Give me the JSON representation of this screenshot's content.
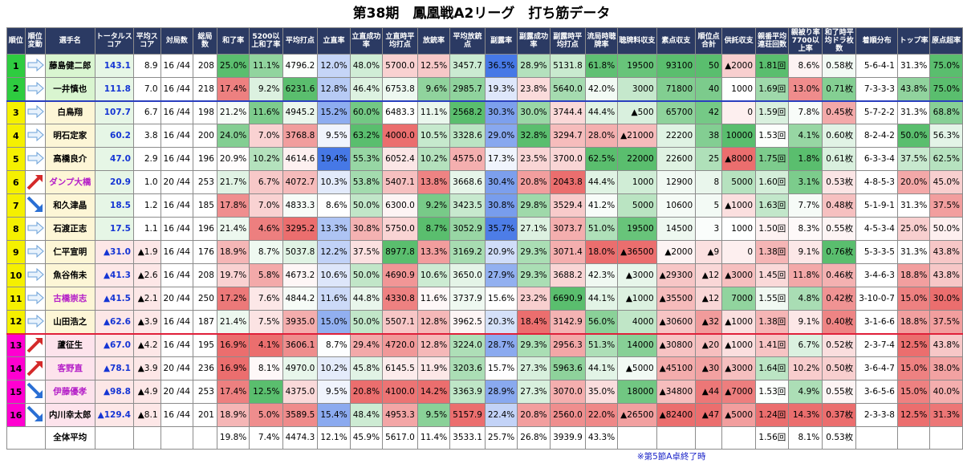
{
  "title": "第38期　鳳凰戦A2リーグ　打ち筋データ",
  "note": "※第5節A卓終了時",
  "colors": {
    "header": "#2b3a63",
    "rank_top": "#2ecc40",
    "rank_mid": "#f5f000",
    "rank_bottom": "#ff00d0",
    "blue_text": "#1535d4"
  },
  "headers": [
    "順位",
    "順位変動",
    "選手名",
    "トータルスコア",
    "平均スコア",
    "対局数",
    "総局数",
    "和了率",
    "5200以上和了率",
    "平均打点",
    "立直率",
    "立直成功率",
    "立直時平均打点",
    "放銃率",
    "平均放銃点",
    "副露率",
    "副露成功率",
    "副露時平均打点",
    "流局時聴牌率",
    "聴牌料収支",
    "素点収支",
    "順位点合計",
    "供託収支",
    "親番平均連荘回数",
    "親被り率7700以上率",
    "和了時平均ドラ枚数",
    "着順分布",
    "トップ率",
    "原点超率"
  ],
  "players": [
    {
      "rank": "1",
      "move": "right",
      "name": "藤島健二郎",
      "name_color": "#000000",
      "cells": [
        "143.1",
        "8.9",
        "16 /44",
        "208",
        "25.0%",
        "11.1%",
        "4796.2",
        "12.0%",
        "48.0%",
        "5700.0",
        "12.5%",
        "3457.7",
        "36.5%",
        "28.9%",
        "5131.8",
        "61.8%",
        "19500",
        "93100",
        "50",
        "▲2000",
        "1.81回",
        "8.6%",
        "0.58枚",
        "5-6-4-1",
        "31.3%",
        "75.0%"
      ]
    },
    {
      "rank": "2",
      "move": "right",
      "name": "一井慎也",
      "name_color": "#000000",
      "cells": [
        "111.8",
        "7.0",
        "16 /44",
        "218",
        "17.4%",
        "9.2%",
        "6231.6",
        "12.8%",
        "46.4%",
        "6753.8",
        "9.6%",
        "2985.7",
        "19.3%",
        "23.8%",
        "5640.0",
        "42.0%",
        "3000",
        "71800",
        "40",
        "1000",
        "1.69回",
        "13.0%",
        "0.71枚",
        "7-3-3-3",
        "43.8%",
        "75.0%"
      ]
    },
    {
      "rank": "3",
      "move": "right",
      "name": "白鳥翔",
      "name_color": "#000000",
      "cells": [
        "107.7",
        "6.7",
        "16 /44",
        "198",
        "21.2%",
        "11.6%",
        "4945.2",
        "15.2%",
        "60.0%",
        "6483.3",
        "11.1%",
        "2568.2",
        "30.3%",
        "30.0%",
        "3744.4",
        "44.4%",
        "▲500",
        "65700",
        "42",
        "0",
        "1.59回",
        "7.8%",
        "0.45枚",
        "5-7-2-2",
        "31.3%",
        "68.8%"
      ]
    },
    {
      "rank": "4",
      "move": "right",
      "name": "明石定家",
      "name_color": "#000000",
      "cells": [
        "60.2",
        "3.8",
        "16 /44",
        "200",
        "24.0%",
        "7.0%",
        "3768.8",
        "9.5%",
        "63.2%",
        "4000.0",
        "10.5%",
        "3328.6",
        "29.0%",
        "32.8%",
        "3294.7",
        "28.0%",
        "▲21000",
        "22200",
        "38",
        "10000",
        "1.53回",
        "4.1%",
        "0.60枚",
        "8-2-4-2",
        "50.0%",
        "56.3%"
      ]
    },
    {
      "rank": "5",
      "move": "right",
      "name": "高橋良介",
      "name_color": "#000000",
      "cells": [
        "47.0",
        "2.9",
        "16 /44",
        "196",
        "20.9%",
        "10.2%",
        "4614.6",
        "19.4%",
        "55.3%",
        "6052.4",
        "10.2%",
        "4575.0",
        "17.3%",
        "23.5%",
        "3700.0",
        "62.5%",
        "22000",
        "22600",
        "25",
        "▲8000",
        "1.75回",
        "1.8%",
        "0.61枚",
        "6-3-3-4",
        "37.5%",
        "62.5%"
      ]
    },
    {
      "rank": "6",
      "move": "up",
      "name": "ダンプ大橋",
      "name_color": "#b520c8",
      "cells": [
        "20.9",
        "1.0",
        "20 /44",
        "253",
        "21.7%",
        "6.7%",
        "4072.7",
        "10.3%",
        "53.8%",
        "5407.1",
        "13.8%",
        "3668.6",
        "30.4%",
        "20.8%",
        "2043.8",
        "44.4%",
        "1000",
        "12900",
        "8",
        "5000",
        "1.60回",
        "3.1%",
        "0.53枚",
        "4-8-5-3",
        "20.0%",
        "45.0%"
      ]
    },
    {
      "rank": "7",
      "move": "down",
      "name": "和久津晶",
      "name_color": "#000000",
      "cells": [
        "18.5",
        "1.2",
        "16 /44",
        "185",
        "17.8%",
        "7.0%",
        "4833.3",
        "8.6%",
        "50.0%",
        "6300.0",
        "9.2%",
        "3423.5",
        "30.8%",
        "29.8%",
        "3529.4",
        "41.2%",
        "5000",
        "10600",
        "5",
        "▲1000",
        "1.63回",
        "7.7%",
        "0.48枚",
        "5-1-9-1",
        "31.3%",
        "37.5%"
      ]
    },
    {
      "rank": "8",
      "move": "right",
      "name": "石渡正志",
      "name_color": "#000000",
      "cells": [
        "17.5",
        "1.1",
        "16 /44",
        "196",
        "21.4%",
        "4.6%",
        "3295.2",
        "13.3%",
        "30.8%",
        "5750.0",
        "8.7%",
        "3052.9",
        "35.7%",
        "27.1%",
        "3073.7",
        "51.0%",
        "19500",
        "14500",
        "3",
        "1000",
        "1.50回",
        "8.3%",
        "0.55枚",
        "4-5-3-4",
        "25.0%",
        "50.0%"
      ]
    },
    {
      "rank": "9",
      "move": "right",
      "name": "仁平宣明",
      "name_color": "#000000",
      "cells": [
        "▲31.0",
        "▲1.9",
        "16 /44",
        "176",
        "18.9%",
        "8.7%",
        "5037.8",
        "12.2%",
        "37.5%",
        "8977.8",
        "13.3%",
        "3169.2",
        "20.9%",
        "29.3%",
        "3071.4",
        "18.0%",
        "▲36500",
        "▲2000",
        "▲9",
        "0",
        "1.38回",
        "9.1%",
        "0.76枚",
        "5-3-3-5",
        "31.3%",
        "43.8%"
      ]
    },
    {
      "rank": "10",
      "move": "right",
      "name": "魚谷侑未",
      "name_color": "#000000",
      "cells": [
        "▲41.3",
        "▲2.6",
        "16 /44",
        "208",
        "19.7%",
        "5.8%",
        "4673.2",
        "10.6%",
        "50.0%",
        "4690.9",
        "10.6%",
        "3650.0",
        "27.9%",
        "29.3%",
        "3688.2",
        "42.3%",
        "▲3000",
        "▲29300",
        "▲12",
        "▲3000",
        "1.45回",
        "11.8%",
        "0.46枚",
        "3-4-6-3",
        "18.8%",
        "43.8%"
      ]
    },
    {
      "rank": "11",
      "move": "right",
      "name": "古橋崇志",
      "name_color": "#b520c8",
      "cells": [
        "▲41.5",
        "▲2.1",
        "20 /44",
        "250",
        "17.2%",
        "7.6%",
        "4844.2",
        "11.6%",
        "44.8%",
        "4330.8",
        "11.6%",
        "3737.9",
        "15.6%",
        "23.2%",
        "6690.9",
        "44.1%",
        "▲1000",
        "▲35500",
        "▲12",
        "7000",
        "1.55回",
        "4.8%",
        "0.42枚",
        "3-10-0-7",
        "15.0%",
        "30.0%"
      ]
    },
    {
      "rank": "12",
      "move": "right",
      "name": "山田浩之",
      "name_color": "#000000",
      "cells": [
        "▲62.6",
        "▲3.9",
        "16 /44",
        "187",
        "21.4%",
        "7.5%",
        "3935.0",
        "15.0%",
        "50.0%",
        "5507.1",
        "12.8%",
        "3962.5",
        "20.3%",
        "18.4%",
        "3142.9",
        "56.0%",
        "4000",
        "▲30600",
        "▲32",
        "▲1000",
        "1.38回",
        "9.1%",
        "0.40枚",
        "3-1-6-6",
        "18.8%",
        "37.5%"
      ]
    },
    {
      "rank": "13",
      "move": "up",
      "name": "蘆征生",
      "name_color": "#000000",
      "cells": [
        "▲67.0",
        "▲4.2",
        "16 /44",
        "195",
        "16.9%",
        "4.1%",
        "3606.1",
        "8.7%",
        "29.4%",
        "4720.0",
        "12.8%",
        "3224.0",
        "28.7%",
        "29.3%",
        "2956.3",
        "51.3%",
        "14000",
        "▲30800",
        "▲20",
        "▲1000",
        "1.41回",
        "6.7%",
        "0.52枚",
        "2-3-7-4",
        "12.5%",
        "43.8%"
      ]
    },
    {
      "rank": "14",
      "move": "up",
      "name": "客野直",
      "name_color": "#b520c8",
      "cells": [
        "▲78.1",
        "▲3.9",
        "20 /44",
        "236",
        "16.9%",
        "8.1%",
        "4970.0",
        "10.2%",
        "45.8%",
        "6145.5",
        "11.9%",
        "3203.6",
        "15.7%",
        "27.3%",
        "5963.6",
        "44.1%",
        "▲5000",
        "▲45100",
        "▲30",
        "▲3000",
        "1.64回",
        "10.2%",
        "0.50枚",
        "3-6-4-7",
        "15.0%",
        "38.0%"
      ]
    },
    {
      "rank": "15",
      "move": "down",
      "name": "伊藤優孝",
      "name_color": "#b520c8",
      "cells": [
        "▲98.8",
        "▲4.9",
        "20 /44",
        "253",
        "17.4%",
        "12.5%",
        "4375.0",
        "9.5%",
        "20.8%",
        "4100.0",
        "14.2%",
        "3363.9",
        "28.9%",
        "27.3%",
        "3070.0",
        "35.0%",
        "18000",
        "▲34800",
        "▲44",
        "▲7000",
        "1.53回",
        "4.9%",
        "0.55枚",
        "3-6-5-6",
        "15.0%",
        "40.0%"
      ]
    },
    {
      "rank": "16",
      "move": "down",
      "name": "内川幸太郎",
      "name_color": "#000000",
      "cells": [
        "▲129.4",
        "▲8.1",
        "16 /44",
        "201",
        "18.9%",
        "5.0%",
        "3589.5",
        "15.4%",
        "48.4%",
        "4953.3",
        "9.5%",
        "5157.9",
        "22.4%",
        "20.8%",
        "2560.0",
        "22.0%",
        "▲26500",
        "▲82400",
        "▲47",
        "▲5000",
        "1.24回",
        "14.3%",
        "0.37枚",
        "2-3-3-8",
        "12.5%",
        "31.3%"
      ]
    }
  ],
  "average": {
    "label": "全体平均",
    "cells": [
      "",
      "",
      "",
      "",
      "19.8%",
      "7.4%",
      "4474.3",
      "12.1%",
      "45.9%",
      "5617.0",
      "11.4%",
      "3533.1",
      "25.7%",
      "26.8%",
      "3939.9",
      "43.3%",
      "",
      "",
      "",
      "",
      "1.56回",
      "8.1%",
      "0.53枚",
      "",
      "",
      ""
    ]
  }
}
